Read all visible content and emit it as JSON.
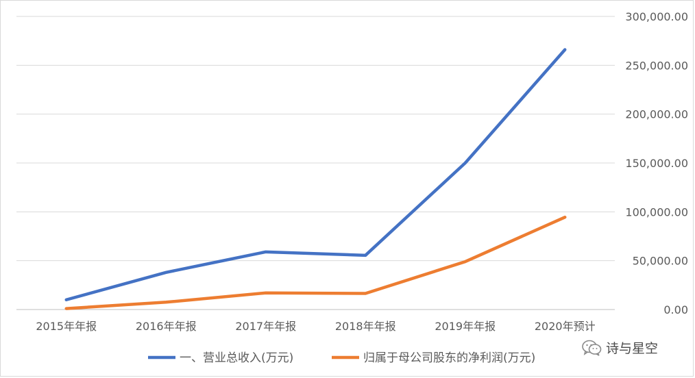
{
  "chart_data": {
    "type": "line",
    "categories": [
      "2015年年报",
      "2016年年报",
      "2017年年报",
      "2018年年报",
      "2019年年报",
      "2020年预计"
    ],
    "series": [
      {
        "name": "一、营业总收入(万元)",
        "color": "#4472c4",
        "values": [
          10000,
          38000,
          59000,
          55500,
          150000,
          266000
        ]
      },
      {
        "name": "归属于母公司股东的净利润(万元)",
        "color": "#ed7d31",
        "values": [
          1000,
          7500,
          17000,
          16500,
          49000,
          94500
        ]
      }
    ],
    "y_ticks": [
      "0.00",
      "50,000.00",
      "100,000.00",
      "150,000.00",
      "200,000.00",
      "250,000.00",
      "300,000.00"
    ],
    "ylim": [
      0,
      300000
    ],
    "y_axis_side": "right",
    "grid": true,
    "legend": "bottom"
  },
  "watermark": {
    "icon": "wechat-icon",
    "text": "诗与星空"
  }
}
